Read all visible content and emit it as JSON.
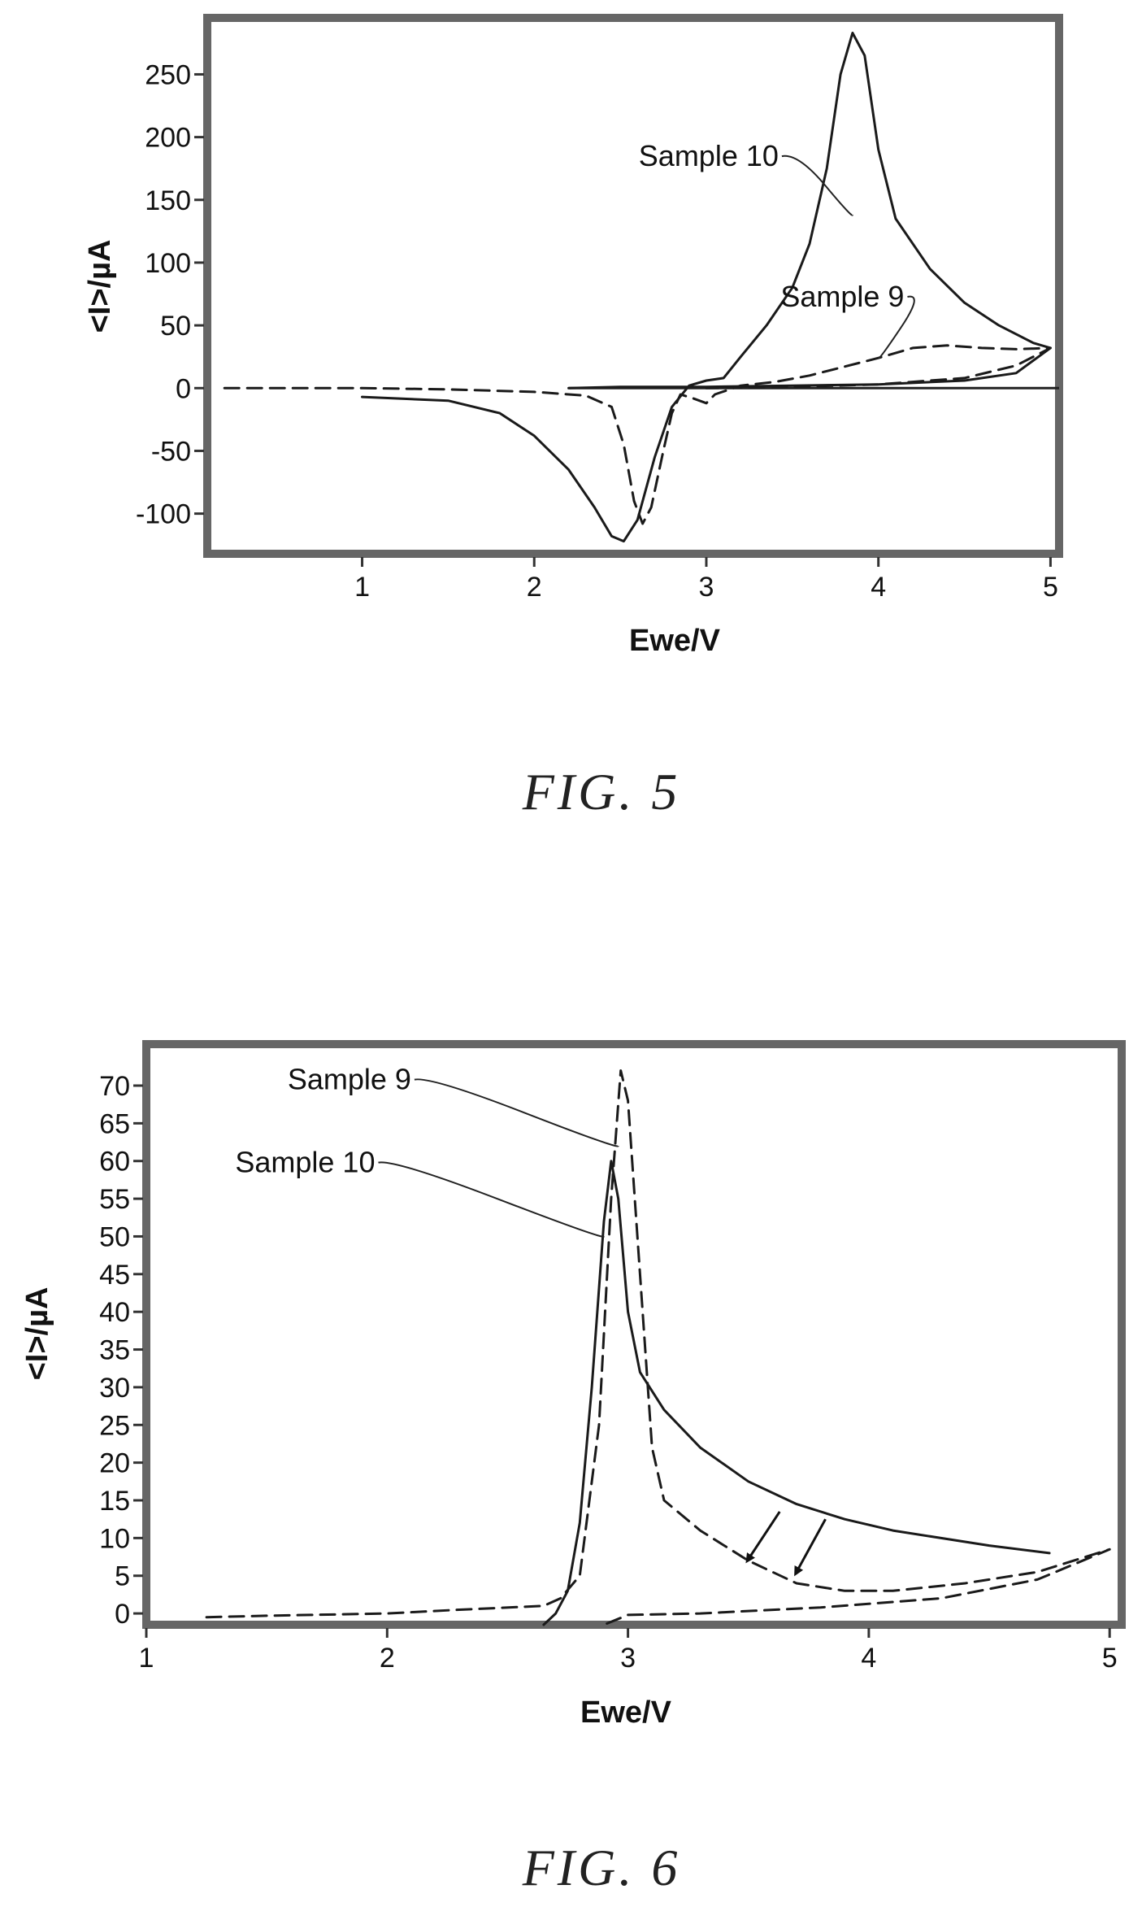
{
  "chart_data": [
    {
      "type": "line",
      "caption": "FIG. 5",
      "xlabel": "Ewe/V",
      "ylabel": "<I>/µA",
      "xlim": [
        0.1,
        5.05
      ],
      "ylim": [
        -132,
        295
      ],
      "xticks": [
        1,
        2,
        3,
        4,
        5
      ],
      "yticks": [
        -100,
        -50,
        0,
        50,
        100,
        150,
        200,
        250
      ],
      "grid": false,
      "series": [
        {
          "name": "Sample 10",
          "style": "solid",
          "points": [
            [
              1.0,
              -7
            ],
            [
              1.5,
              -10
            ],
            [
              1.8,
              -20
            ],
            [
              2.0,
              -38
            ],
            [
              2.2,
              -65
            ],
            [
              2.35,
              -95
            ],
            [
              2.45,
              -118
            ],
            [
              2.52,
              -122
            ],
            [
              2.6,
              -105
            ],
            [
              2.7,
              -55
            ],
            [
              2.8,
              -15
            ],
            [
              2.9,
              2
            ],
            [
              3.0,
              6
            ],
            [
              3.1,
              8
            ],
            [
              3.2,
              25
            ],
            [
              3.35,
              50
            ],
            [
              3.5,
              80
            ],
            [
              3.6,
              115
            ],
            [
              3.7,
              175
            ],
            [
              3.78,
              250
            ],
            [
              3.85,
              283
            ],
            [
              3.92,
              265
            ],
            [
              4.0,
              190
            ],
            [
              4.1,
              135
            ],
            [
              4.3,
              95
            ],
            [
              4.5,
              68
            ],
            [
              4.7,
              50
            ],
            [
              4.9,
              36
            ],
            [
              5.0,
              32
            ],
            [
              4.8,
              12
            ],
            [
              4.5,
              6
            ],
            [
              4.0,
              3
            ],
            [
              3.5,
              2
            ],
            [
              3.0,
              1
            ],
            [
              2.5,
              1
            ],
            [
              2.2,
              0
            ]
          ]
        },
        {
          "name": "Sample 9",
          "style": "dashed",
          "points": [
            [
              0.2,
              0
            ],
            [
              1.0,
              0
            ],
            [
              1.5,
              -1
            ],
            [
              2.0,
              -3
            ],
            [
              2.3,
              -6
            ],
            [
              2.45,
              -15
            ],
            [
              2.52,
              -45
            ],
            [
              2.58,
              -90
            ],
            [
              2.63,
              -108
            ],
            [
              2.68,
              -95
            ],
            [
              2.75,
              -50
            ],
            [
              2.8,
              -20
            ],
            [
              2.85,
              -5
            ],
            [
              2.92,
              -8
            ],
            [
              3.0,
              -12
            ],
            [
              3.05,
              -5
            ],
            [
              3.2,
              2
            ],
            [
              3.4,
              5
            ],
            [
              3.6,
              10
            ],
            [
              3.8,
              17
            ],
            [
              4.0,
              24
            ],
            [
              4.2,
              32
            ],
            [
              4.4,
              34
            ],
            [
              4.6,
              32
            ],
            [
              4.8,
              31
            ],
            [
              5.0,
              32
            ],
            [
              4.8,
              18
            ],
            [
              4.5,
              8
            ],
            [
              4.0,
              3
            ],
            [
              3.5,
              1
            ],
            [
              3.0,
              0
            ]
          ]
        }
      ],
      "annotations": [
        {
          "text": "Sample 10",
          "x": 3.42,
          "y": 177,
          "target": [
            3.85,
            138
          ]
        },
        {
          "text": "Sample 9",
          "x": 4.15,
          "y": 65,
          "target": [
            4.0,
            24
          ]
        }
      ]
    },
    {
      "type": "line",
      "caption": "FIG. 6",
      "xlabel": "Ewe/V",
      "ylabel": "<I>/µA",
      "xlim": [
        1.0,
        5.05
      ],
      "ylim": [
        -1.5,
        75.5
      ],
      "xticks": [
        1,
        2,
        3,
        4,
        5
      ],
      "yticks": [
        0,
        5,
        10,
        15,
        20,
        25,
        30,
        35,
        40,
        45,
        50,
        55,
        60,
        65,
        70
      ],
      "grid": false,
      "series": [
        {
          "name": "Sample 10",
          "style": "solid",
          "points": [
            [
              2.65,
              -1.5
            ],
            [
              2.7,
              0
            ],
            [
              2.75,
              3
            ],
            [
              2.8,
              12
            ],
            [
              2.85,
              30
            ],
            [
              2.9,
              52
            ],
            [
              2.93,
              60
            ],
            [
              2.96,
              55
            ],
            [
              3.0,
              40
            ],
            [
              3.05,
              32
            ],
            [
              3.15,
              27
            ],
            [
              3.3,
              22
            ],
            [
              3.5,
              17.5
            ],
            [
              3.7,
              14.5
            ],
            [
              3.9,
              12.5
            ],
            [
              4.1,
              11
            ],
            [
              4.3,
              10
            ],
            [
              4.5,
              9
            ],
            [
              4.75,
              8
            ]
          ]
        },
        {
          "name": "Sample 9",
          "style": "dashed",
          "points": [
            [
              1.25,
              -0.5
            ],
            [
              1.5,
              -0.3
            ],
            [
              2.0,
              0
            ],
            [
              2.3,
              0.5
            ],
            [
              2.65,
              1
            ],
            [
              2.72,
              2
            ],
            [
              2.8,
              5
            ],
            [
              2.88,
              25
            ],
            [
              2.93,
              55
            ],
            [
              2.97,
              72
            ],
            [
              3.0,
              68
            ],
            [
              3.05,
              45
            ],
            [
              3.1,
              22
            ],
            [
              3.15,
              15
            ],
            [
              3.3,
              11
            ],
            [
              3.5,
              7
            ],
            [
              3.7,
              4
            ],
            [
              3.9,
              3
            ],
            [
              4.1,
              3
            ],
            [
              4.4,
              4
            ],
            [
              4.7,
              5.5
            ],
            [
              5.0,
              8.5
            ],
            [
              4.7,
              4.5
            ],
            [
              4.3,
              2
            ],
            [
              3.8,
              0.8
            ],
            [
              3.3,
              0
            ],
            [
              3.0,
              -0.2
            ],
            [
              2.9,
              -1.5
            ]
          ]
        }
      ],
      "annotations": [
        {
          "text": "Sample 9",
          "x": 2.1,
          "y": 69.5,
          "target": [
            2.96,
            62
          ]
        },
        {
          "text": "Sample 10",
          "x": 1.95,
          "y": 58.5,
          "target": [
            2.9,
            50
          ]
        }
      ],
      "arrows": [
        {
          "from": [
            3.63,
            13.5
          ],
          "to": [
            3.5,
            7.2
          ]
        },
        {
          "from": [
            3.82,
            12.5
          ],
          "to": [
            3.7,
            5.5
          ]
        }
      ]
    }
  ]
}
